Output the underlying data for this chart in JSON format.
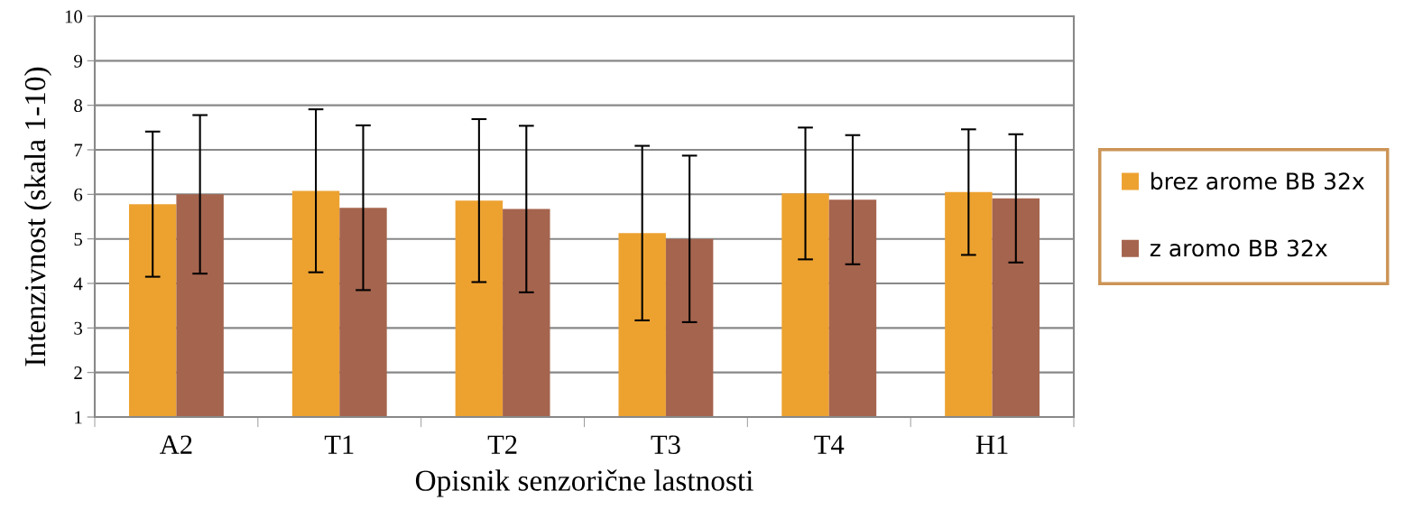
{
  "chart_data": {
    "type": "bar",
    "xlabel": "Opisnik senzorične lastnosti",
    "ylabel": "Intenzivnost (skala 1-10)",
    "categories": [
      "A2",
      "T1",
      "T2",
      "T3",
      "T4",
      "H1"
    ],
    "series": [
      {
        "name": "brez arome BB 32x",
        "color": "#eda230",
        "values": [
          5.78,
          6.08,
          5.86,
          5.13,
          6.02,
          6.05
        ],
        "errors": [
          1.63,
          1.83,
          1.83,
          1.96,
          1.48,
          1.41
        ]
      },
      {
        "name": "z aromo BB 32x",
        "color": "#a5644e",
        "values": [
          6.0,
          5.7,
          5.67,
          5.0,
          5.88,
          5.91
        ],
        "errors": [
          1.78,
          1.85,
          1.87,
          1.87,
          1.45,
          1.44
        ]
      }
    ],
    "ylim": [
      1,
      10
    ],
    "yticks": [
      1,
      2,
      3,
      4,
      5,
      6,
      7,
      8,
      9,
      10
    ],
    "grid": "y",
    "legend": "right"
  }
}
